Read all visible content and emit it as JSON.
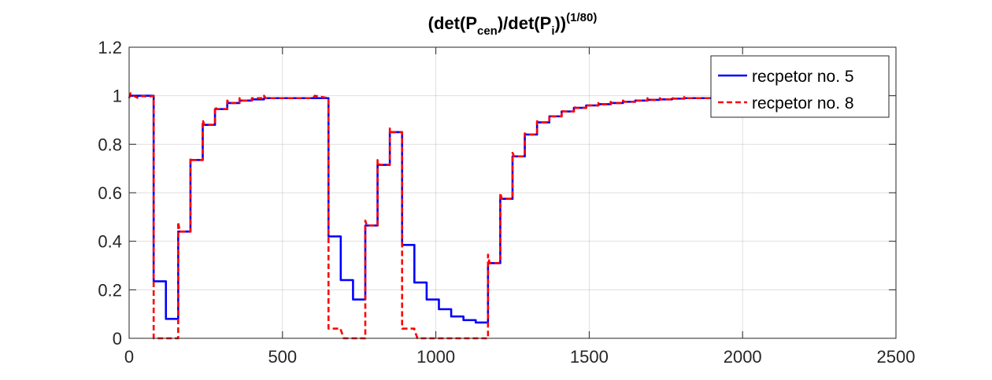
{
  "chart_data": {
    "type": "line",
    "title": {
      "parts": [
        {
          "text": "(det(P",
          "style": "normal"
        },
        {
          "text": "cen",
          "style": "sub"
        },
        {
          "text": ")/det(P",
          "style": "normal"
        },
        {
          "text": "i",
          "style": "sub"
        },
        {
          "text": "))",
          "style": "normal"
        },
        {
          "text": "(1/80)",
          "style": "sup"
        }
      ]
    },
    "xlabel": "",
    "ylabel": "",
    "xlim": [
      0,
      2500
    ],
    "ylim": [
      0,
      1.2
    ],
    "x_ticks": [
      0,
      500,
      1000,
      1500,
      2000,
      2500
    ],
    "x_tick_labels": [
      "0",
      "500",
      "1000",
      "1500",
      "2000",
      "2500"
    ],
    "y_ticks": [
      0,
      0.2,
      0.4,
      0.6,
      0.8,
      1,
      1.2
    ],
    "y_tick_labels": [
      "0",
      "0.2",
      "0.4",
      "0.6",
      "0.8",
      "1",
      "1.2"
    ],
    "grid": true,
    "legend_position": "top-right",
    "series": [
      {
        "name": "recpetor no. 5",
        "color": "#0000ff",
        "line_style": "solid",
        "points": [
          [
            0,
            1.0
          ],
          [
            80,
            1.0
          ],
          [
            80,
            0.235
          ],
          [
            120,
            0.235
          ],
          [
            120,
            0.08
          ],
          [
            160,
            0.08
          ],
          [
            160,
            0.44
          ],
          [
            200,
            0.44
          ],
          [
            200,
            0.735
          ],
          [
            240,
            0.735
          ],
          [
            240,
            0.88
          ],
          [
            280,
            0.88
          ],
          [
            280,
            0.945
          ],
          [
            320,
            0.945
          ],
          [
            320,
            0.97
          ],
          [
            360,
            0.97
          ],
          [
            360,
            0.98
          ],
          [
            400,
            0.98
          ],
          [
            400,
            0.985
          ],
          [
            440,
            0.985
          ],
          [
            440,
            0.99
          ],
          [
            650,
            0.99
          ],
          [
            650,
            0.42
          ],
          [
            690,
            0.42
          ],
          [
            690,
            0.24
          ],
          [
            730,
            0.24
          ],
          [
            730,
            0.16
          ],
          [
            770,
            0.16
          ],
          [
            770,
            0.465
          ],
          [
            810,
            0.465
          ],
          [
            810,
            0.715
          ],
          [
            850,
            0.715
          ],
          [
            850,
            0.85
          ],
          [
            890,
            0.85
          ],
          [
            890,
            0.385
          ],
          [
            930,
            0.385
          ],
          [
            930,
            0.23
          ],
          [
            970,
            0.23
          ],
          [
            970,
            0.16
          ],
          [
            1010,
            0.16
          ],
          [
            1010,
            0.12
          ],
          [
            1050,
            0.12
          ],
          [
            1050,
            0.09
          ],
          [
            1090,
            0.09
          ],
          [
            1090,
            0.075
          ],
          [
            1130,
            0.075
          ],
          [
            1130,
            0.065
          ],
          [
            1170,
            0.065
          ],
          [
            1170,
            0.31
          ],
          [
            1210,
            0.31
          ],
          [
            1210,
            0.575
          ],
          [
            1250,
            0.575
          ],
          [
            1250,
            0.75
          ],
          [
            1290,
            0.75
          ],
          [
            1290,
            0.84
          ],
          [
            1330,
            0.84
          ],
          [
            1330,
            0.89
          ],
          [
            1370,
            0.89
          ],
          [
            1370,
            0.915
          ],
          [
            1410,
            0.915
          ],
          [
            1410,
            0.935
          ],
          [
            1450,
            0.935
          ],
          [
            1450,
            0.95
          ],
          [
            1490,
            0.95
          ],
          [
            1490,
            0.96
          ],
          [
            1530,
            0.96
          ],
          [
            1530,
            0.965
          ],
          [
            1570,
            0.965
          ],
          [
            1570,
            0.97
          ],
          [
            1610,
            0.97
          ],
          [
            1610,
            0.975
          ],
          [
            1650,
            0.975
          ],
          [
            1650,
            0.98
          ],
          [
            1690,
            0.98
          ],
          [
            1690,
            0.983
          ],
          [
            1730,
            0.983
          ],
          [
            1730,
            0.985
          ],
          [
            1770,
            0.985
          ],
          [
            1770,
            0.988
          ],
          [
            1810,
            0.988
          ],
          [
            1810,
            0.99
          ],
          [
            1900,
            0.99
          ]
        ]
      },
      {
        "name": "recpetor no. 8",
        "color": "#ff0000",
        "line_style": "dashed",
        "points": [
          [
            0,
            0.99
          ],
          [
            5,
            1.01
          ],
          [
            15,
            1.0
          ],
          [
            30,
            0.99
          ],
          [
            45,
            1.0
          ],
          [
            60,
            0.995
          ],
          [
            80,
            1.0
          ],
          [
            80,
            0.0
          ],
          [
            160,
            0.0
          ],
          [
            160,
            0.48
          ],
          [
            165,
            0.44
          ],
          [
            200,
            0.44
          ],
          [
            200,
            0.745
          ],
          [
            205,
            0.735
          ],
          [
            240,
            0.735
          ],
          [
            240,
            0.9
          ],
          [
            245,
            0.88
          ],
          [
            280,
            0.88
          ],
          [
            280,
            0.955
          ],
          [
            285,
            0.945
          ],
          [
            320,
            0.945
          ],
          [
            320,
            0.98
          ],
          [
            325,
            0.97
          ],
          [
            360,
            0.97
          ],
          [
            360,
            0.99
          ],
          [
            365,
            0.98
          ],
          [
            400,
            0.98
          ],
          [
            400,
            0.99
          ],
          [
            440,
            0.99
          ],
          [
            440,
            1.0
          ],
          [
            445,
            0.99
          ],
          [
            600,
            0.99
          ],
          [
            605,
            1.0
          ],
          [
            650,
            0.99
          ],
          [
            650,
            0.04
          ],
          [
            690,
            0.04
          ],
          [
            690,
            0.035
          ],
          [
            700,
            0.0
          ],
          [
            770,
            0.0
          ],
          [
            770,
            0.485
          ],
          [
            775,
            0.465
          ],
          [
            810,
            0.465
          ],
          [
            810,
            0.735
          ],
          [
            815,
            0.715
          ],
          [
            850,
            0.715
          ],
          [
            850,
            0.865
          ],
          [
            855,
            0.85
          ],
          [
            890,
            0.85
          ],
          [
            890,
            0.04
          ],
          [
            930,
            0.04
          ],
          [
            930,
            0.035
          ],
          [
            940,
            0.0
          ],
          [
            1170,
            0.0
          ],
          [
            1170,
            0.345
          ],
          [
            1175,
            0.31
          ],
          [
            1210,
            0.31
          ],
          [
            1210,
            0.6
          ],
          [
            1215,
            0.575
          ],
          [
            1250,
            0.575
          ],
          [
            1250,
            0.765
          ],
          [
            1255,
            0.75
          ],
          [
            1290,
            0.75
          ],
          [
            1290,
            0.845
          ],
          [
            1295,
            0.84
          ],
          [
            1330,
            0.84
          ],
          [
            1330,
            0.895
          ],
          [
            1335,
            0.89
          ],
          [
            1370,
            0.89
          ],
          [
            1370,
            0.92
          ],
          [
            1375,
            0.915
          ],
          [
            1410,
            0.915
          ],
          [
            1410,
            0.94
          ],
          [
            1415,
            0.935
          ],
          [
            1450,
            0.935
          ],
          [
            1450,
            0.955
          ],
          [
            1455,
            0.95
          ],
          [
            1490,
            0.95
          ],
          [
            1490,
            0.965
          ],
          [
            1495,
            0.96
          ],
          [
            1530,
            0.96
          ],
          [
            1530,
            0.97
          ],
          [
            1535,
            0.965
          ],
          [
            1570,
            0.965
          ],
          [
            1570,
            0.975
          ],
          [
            1575,
            0.97
          ],
          [
            1610,
            0.97
          ],
          [
            1610,
            0.98
          ],
          [
            1615,
            0.975
          ],
          [
            1650,
            0.975
          ],
          [
            1650,
            0.985
          ],
          [
            1655,
            0.98
          ],
          [
            1690,
            0.98
          ],
          [
            1690,
            0.99
          ],
          [
            1695,
            0.983
          ],
          [
            1730,
            0.983
          ],
          [
            1730,
            0.99
          ],
          [
            1735,
            0.985
          ],
          [
            1770,
            0.985
          ],
          [
            1770,
            0.993
          ],
          [
            1775,
            0.988
          ],
          [
            1810,
            0.988
          ],
          [
            1810,
            0.995
          ],
          [
            1815,
            0.99
          ],
          [
            1900,
            0.99
          ]
        ]
      }
    ]
  }
}
